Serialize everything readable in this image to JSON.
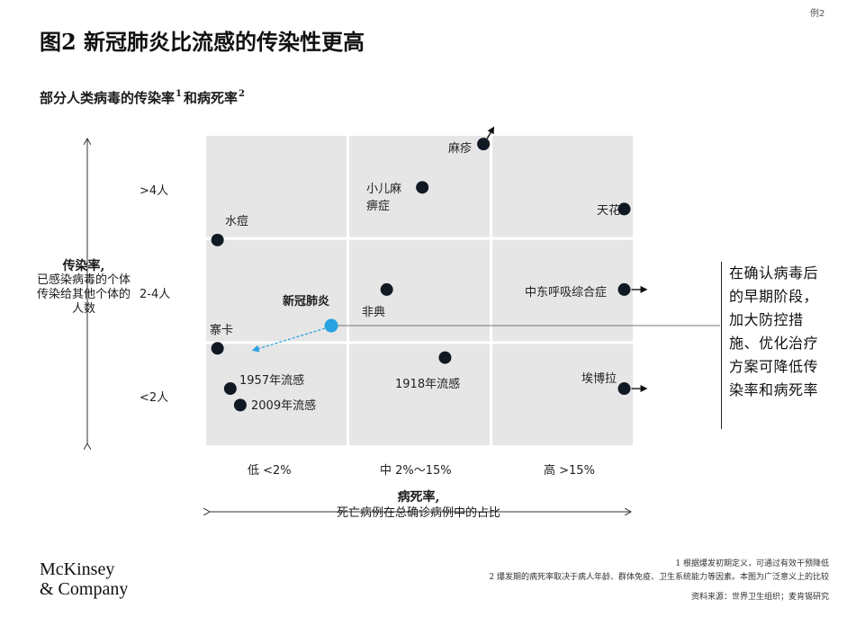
{
  "corner_label": "例2",
  "figure_title": "图2 新冠肺炎比流感的传染性更高",
  "chart_title": {
    "prefix": "部分人类病毒的传染率",
    "sup1": "1",
    "middle": "和病死率",
    "sup2": "2"
  },
  "y_axis": {
    "title": "传染率,",
    "subtitle": "已感染病毒的个体传染给其他个体的人数",
    "ticks": [
      ">4人",
      "2-4人",
      "<2人"
    ]
  },
  "x_axis": {
    "title": "病死率,",
    "subtitle": "死亡病例在总确诊病例中的占比",
    "ticks": [
      "低 <2%",
      "中 2%～15%",
      "高 >15%"
    ]
  },
  "callout_text": "在确认病毒后的早期阶段，加大防控措施、优化治疗方案可降低传染率和病死率",
  "colors": {
    "grid_bg": "#e6e6e6",
    "point": "#111a24",
    "highlight": "#29a3e2"
  },
  "chart_data": {
    "type": "scatter",
    "title": "部分人类病毒的传染率和病死率",
    "xlabel": "病死率",
    "ylabel": "传染率",
    "x_categories": [
      "低 <2%",
      "中 2%～15%",
      "高 >15%"
    ],
    "y_categories": [
      "<2人",
      "2-4人",
      ">4人"
    ],
    "xlim": [
      0,
      3
    ],
    "ylim": [
      0,
      3
    ],
    "grid": true,
    "points": [
      {
        "name": "麻疹",
        "x": 1.95,
        "y": 2.92,
        "arrow": "up-right"
      },
      {
        "name": "小儿麻痹症",
        "x": 1.52,
        "y": 2.5
      },
      {
        "name": "天花",
        "x": 2.94,
        "y": 2.29
      },
      {
        "name": "水痘",
        "x": 0.08,
        "y": 1.99
      },
      {
        "name": "中东呼吸综合症",
        "x": 2.94,
        "y": 1.51,
        "arrow": "right"
      },
      {
        "name": "非典",
        "x": 1.27,
        "y": 1.51
      },
      {
        "name": "新冠肺炎",
        "x": 0.88,
        "y": 1.16,
        "highlight": true
      },
      {
        "name": "寨卡",
        "x": 0.08,
        "y": 0.94
      },
      {
        "name": "1918年流感",
        "x": 1.68,
        "y": 0.85
      },
      {
        "name": "埃博拉",
        "x": 2.94,
        "y": 0.55,
        "arrow": "right"
      },
      {
        "name": "1957年流感",
        "x": 0.17,
        "y": 0.55
      },
      {
        "name": "2009年流感",
        "x": 0.24,
        "y": 0.39
      }
    ]
  },
  "footnotes": [
    "1 根据爆发初期定义，可通过有效干预降低",
    "2 爆发期的病死率取决于病人年龄、群体免疫、卫生系统能力等因素。本图为广泛意义上的比较"
  ],
  "source": "资料来源：世界卫生组织；麦肯锡研究",
  "logo": {
    "line1": "McKinsey",
    "line2": "& Company"
  }
}
